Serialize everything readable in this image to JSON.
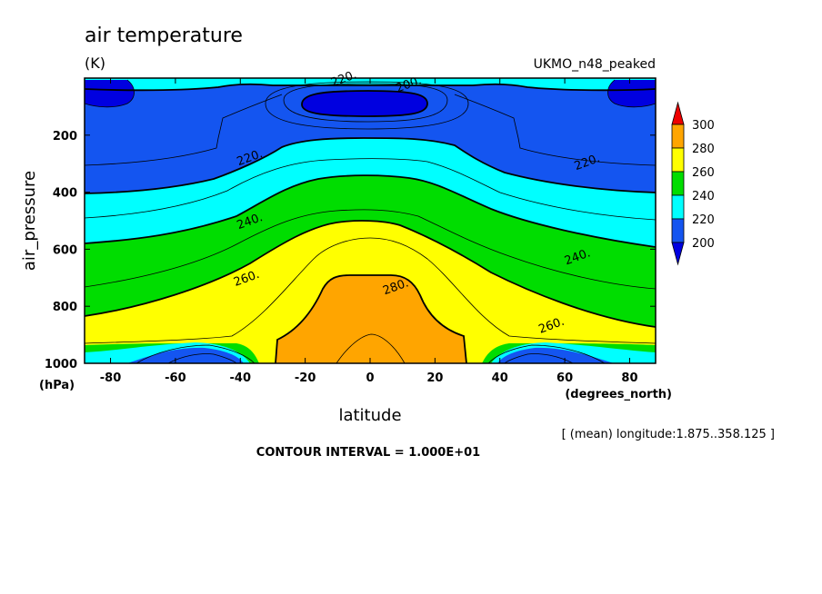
{
  "chart_data": {
    "type": "contour",
    "title": "air temperature",
    "units": "(K)",
    "dataset": "UKMO_n48_peaked",
    "xlabel": "latitude",
    "x_units": "(degrees_north)",
    "ylabel": "air_pressure",
    "y_units": "(hPa)",
    "xlim": [
      -88,
      88
    ],
    "ylim": [
      1000,
      0
    ],
    "x_ticks": [
      -80,
      -60,
      -40,
      -20,
      0,
      20,
      40,
      60,
      80
    ],
    "x_tick_labels": [
      "-80",
      "-60",
      "-40",
      "-20",
      "0",
      "20",
      "40",
      "60",
      "80"
    ],
    "y_ticks": [
      200,
      400,
      600,
      800,
      1000
    ],
    "y_tick_labels": [
      "200",
      "400",
      "600",
      "800",
      "1000"
    ],
    "contour_interval_text": "CONTOUR INTERVAL = 1.000E+01",
    "averaging_note": "[ (mean) longitude:1.875..358.125 ]",
    "colorbar": {
      "levels": [
        200,
        220,
        240,
        260,
        280,
        300
      ],
      "labels": [
        "200",
        "220",
        "240",
        "260",
        "280",
        "300"
      ],
      "colors": [
        "#1455f0",
        "#00ffff",
        "#00dd00",
        "#ffff00",
        "#ffa500"
      ],
      "below_color": "#0000e0",
      "above_color": "#ee0000"
    },
    "fill_colors": {
      "very_cold": "#0000e0",
      "c200_220": "#1455f0",
      "c220_240": "#00ffff",
      "c240_260": "#00dd00",
      "c260_280": "#ffff00",
      "c280_300": "#ffa500"
    },
    "line_labels": [
      {
        "text": "220.",
        "lat": -8,
        "p": 5
      },
      {
        "text": "200.",
        "lat": 12,
        "p": 25
      },
      {
        "text": "220.",
        "lat": -37,
        "p": 282
      },
      {
        "text": "220.",
        "lat": 67,
        "p": 298
      },
      {
        "text": "240.",
        "lat": -37,
        "p": 505
      },
      {
        "text": "240.",
        "lat": 64,
        "p": 630
      },
      {
        "text": "260.",
        "lat": -38,
        "p": 705
      },
      {
        "text": "260.",
        "lat": 56,
        "p": 870
      },
      {
        "text": "280.",
        "lat": 8,
        "p": 735
      }
    ]
  }
}
